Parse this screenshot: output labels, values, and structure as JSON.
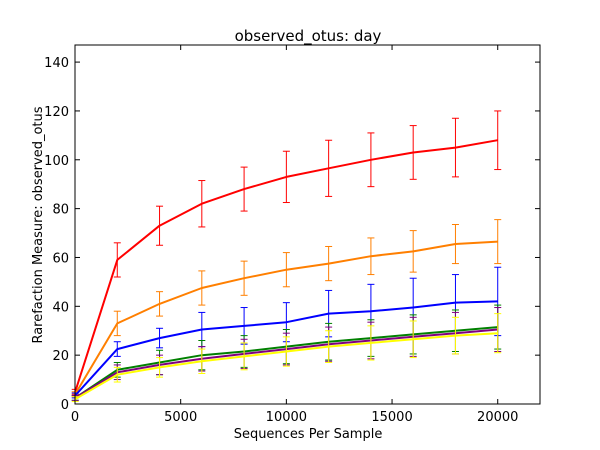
{
  "chart_data": {
    "type": "line",
    "title": "observed_otus: day",
    "xlabel": "Sequences Per Sample",
    "ylabel": "Rarefaction Measure: observed_otus",
    "xlim": [
      0,
      22000
    ],
    "ylim": [
      0,
      147
    ],
    "xticks": [
      0,
      5000,
      10000,
      15000,
      20000
    ],
    "yticks": [
      0,
      20,
      40,
      60,
      80,
      100,
      120,
      140
    ],
    "grid": false,
    "legend": "none",
    "x": [
      10,
      2000,
      4000,
      6000,
      8000,
      10000,
      12000,
      14000,
      16000,
      18000,
      20000
    ],
    "series": [
      {
        "color": "#ff0000",
        "values": [
          5,
          59,
          73,
          82,
          88,
          93,
          96.5,
          100,
          103,
          105,
          108
        ],
        "errors": [
          1,
          7,
          8,
          9.5,
          9,
          10.5,
          11.5,
          11,
          11,
          12,
          12
        ]
      },
      {
        "color": "#ff7f00",
        "values": [
          4,
          33,
          41,
          47.5,
          51.5,
          55,
          57.5,
          60.5,
          62.5,
          65.5,
          66.5
        ],
        "errors": [
          1,
          5,
          5,
          7,
          7,
          7,
          7,
          7.5,
          8.5,
          8,
          9
        ]
      },
      {
        "color": "#0000ff",
        "values": [
          3.5,
          22.5,
          27,
          30.5,
          32,
          33.5,
          37,
          38,
          39.5,
          41.5,
          42
        ],
        "errors": [
          1,
          3,
          4,
          7,
          7.5,
          8,
          9.5,
          11,
          12,
          11.5,
          14
        ]
      },
      {
        "color": "#008000",
        "values": [
          2.5,
          14,
          17,
          20,
          21.5,
          23.5,
          25.5,
          27,
          28.5,
          30,
          31.5
        ],
        "errors": [
          1,
          3,
          5,
          6,
          6.5,
          7,
          7.5,
          7.5,
          8,
          8.5,
          9
        ]
      },
      {
        "color": "#800080",
        "values": [
          2.5,
          13,
          16,
          18.5,
          20.5,
          22.5,
          24.5,
          26,
          27.5,
          29,
          30.5
        ],
        "errors": [
          1,
          3,
          4,
          5,
          6,
          6.5,
          7,
          7.5,
          8,
          8.5,
          9
        ]
      },
      {
        "color": "#ffff00",
        "values": [
          2,
          12,
          15,
          17.5,
          19.5,
          21.5,
          23.5,
          25,
          26.5,
          28,
          29
        ],
        "errors": [
          1,
          3,
          4,
          5,
          5.5,
          6,
          6.5,
          7,
          7.5,
          7.5,
          8
        ]
      }
    ]
  }
}
